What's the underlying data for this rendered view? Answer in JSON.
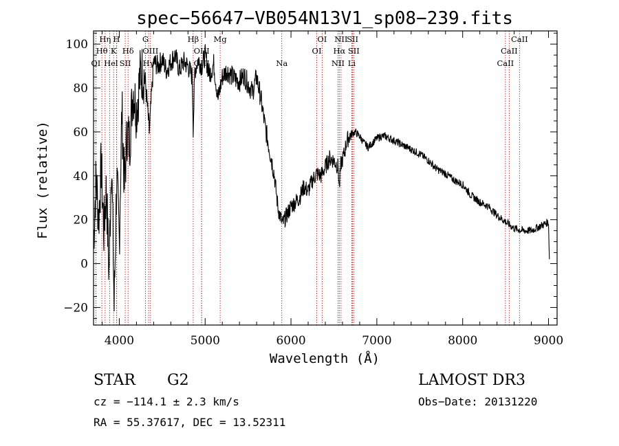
{
  "chart_data": {
    "type": "line",
    "title": "spec−56647−VB054N13V1_sp08−239.fits",
    "xlabel": "Wavelength (Å)",
    "ylabel": "Flux (relative)",
    "xlim": [
      3700,
      9100
    ],
    "ylim": [
      -28,
      106
    ],
    "xticks": [
      4000,
      5000,
      6000,
      7000,
      8000,
      9000
    ],
    "yticks": [
      -20,
      0,
      20,
      40,
      60,
      80,
      100
    ],
    "ytick_labels": [
      "−20",
      "0",
      "20",
      "40",
      "60",
      "80",
      "100"
    ],
    "series": [
      {
        "name": "spectrum",
        "color": "#000000",
        "x": [
          3700,
          3730,
          3760,
          3790,
          3820,
          3850,
          3880,
          3910,
          3940,
          3970,
          4000,
          4030,
          4060,
          4090,
          4120,
          4160,
          4200,
          4250,
          4300,
          4350,
          4400,
          4450,
          4500,
          4550,
          4600,
          4650,
          4700,
          4750,
          4800,
          4850,
          4861,
          4880,
          4920,
          4960,
          5000,
          5050,
          5100,
          5150,
          5200,
          5250,
          5300,
          5350,
          5400,
          5450,
          5500,
          5550,
          5600,
          5650,
          5700,
          5750,
          5800,
          5850,
          5900,
          5950,
          6000,
          6050,
          6100,
          6150,
          6200,
          6250,
          6300,
          6350,
          6400,
          6450,
          6500,
          6550,
          6563,
          6580,
          6620,
          6650,
          6700,
          6750,
          6800,
          6850,
          6900,
          6950,
          7000,
          7050,
          7100,
          7150,
          7200,
          7250,
          7300,
          7400,
          7500,
          7600,
          7700,
          7800,
          7900,
          8000,
          8100,
          8200,
          8300,
          8400,
          8500,
          8600,
          8700,
          8800,
          8900,
          9000,
          9010
        ],
        "y": [
          10,
          40,
          20,
          45,
          15,
          35,
          -5,
          50,
          -20,
          40,
          10,
          70,
          35,
          60,
          55,
          80,
          70,
          88,
          85,
          60,
          92,
          90,
          93,
          88,
          92,
          95,
          88,
          92,
          90,
          85,
          62,
          88,
          93,
          90,
          95,
          86,
          91,
          75,
          85,
          88,
          86,
          84,
          83,
          86,
          82,
          78,
          85,
          75,
          62,
          52,
          42,
          25,
          18,
          22,
          26,
          28,
          30,
          35,
          33,
          38,
          41,
          40,
          44,
          48,
          47,
          44,
          34,
          45,
          50,
          56,
          59,
          60,
          58,
          55,
          53,
          55,
          57,
          58,
          58,
          57,
          56,
          55,
          54,
          52,
          50,
          47,
          43,
          41,
          38,
          36,
          31,
          28,
          26,
          22,
          19,
          16,
          15,
          15,
          17,
          19,
          2
        ]
      }
    ],
    "spectral_lines": [
      {
        "label": "OI",
        "x": 3727,
        "row": 3
      },
      {
        "label": "Hθ",
        "x": 3797,
        "row": 2
      },
      {
        "label": "Hη",
        "x": 3835,
        "row": 1
      },
      {
        "label": "He",
        "x": 3889,
        "row": 3
      },
      {
        "label": "K",
        "x": 3934,
        "row": 2
      },
      {
        "label": "H",
        "x": 3968,
        "row": 1
      },
      {
        "label": "I",
        "x": 3970,
        "row": 3
      },
      {
        "label": "SII",
        "x": 4069,
        "row": 3
      },
      {
        "label": "Hδ",
        "x": 4102,
        "row": 2
      },
      {
        "label": "G",
        "x": 4305,
        "row": 1
      },
      {
        "label": "OIII",
        "x": 4363,
        "row": 2
      },
      {
        "label": "Hγ",
        "x": 4341,
        "row": 3
      },
      {
        "label": "Hβ",
        "x": 4861,
        "row": 1
      },
      {
        "label": "OIII",
        "x": 4959,
        "row": 2
      },
      {
        "label": "OIII",
        "x": 4959,
        "row": 3
      },
      {
        "label": "Mg",
        "x": 5175,
        "row": 1
      },
      {
        "label": "Na",
        "x": 5893,
        "row": 3
      },
      {
        "label": "OI",
        "x": 6300,
        "row": 2
      },
      {
        "label": "OI",
        "x": 6363,
        "row": 1
      },
      {
        "label": "NII",
        "x": 6548,
        "row": 3
      },
      {
        "label": "NII",
        "x": 6583,
        "row": 1
      },
      {
        "label": "Hα",
        "x": 6563,
        "row": 2
      },
      {
        "label": "SII",
        "x": 6717,
        "row": 1
      },
      {
        "label": "SII",
        "x": 6731,
        "row": 2
      },
      {
        "label": "Li",
        "x": 6708,
        "row": 3
      },
      {
        "label": "CaII",
        "x": 8498,
        "row": 3
      },
      {
        "label": "CaII",
        "x": 8542,
        "row": 2
      },
      {
        "label": "CaII",
        "x": 8662,
        "row": 1
      }
    ]
  },
  "info": {
    "object_class": "STAR",
    "subclass": "G2",
    "survey": "LAMOST DR3",
    "redshift": "cz = −114.1 ± 2.3 km/s",
    "obs_date": "Obs−Date: 20131220",
    "coords": "RA =  55.37617, DEC =  13.52311"
  },
  "colors": {
    "line_markers": "#b22222",
    "spectrum": "#000000",
    "axes": "#000000"
  }
}
